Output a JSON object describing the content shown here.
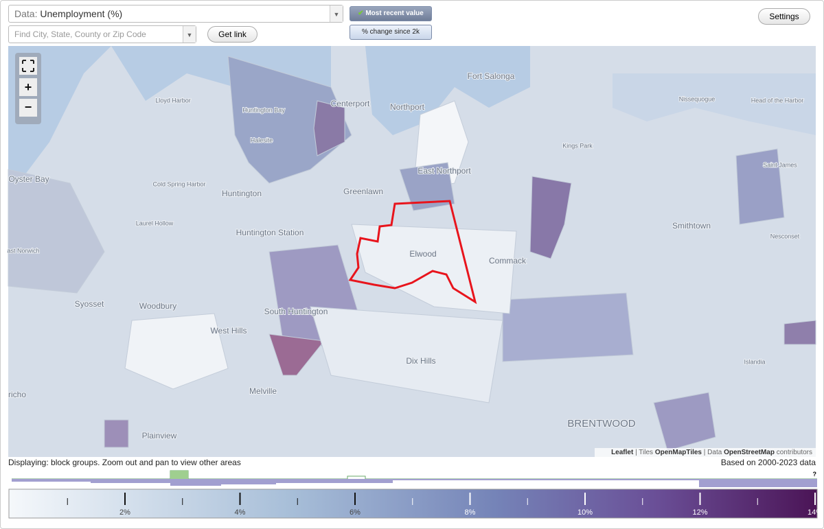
{
  "controls": {
    "data_prefix": "Data:",
    "data_value": "Unemployment (%)",
    "search_placeholder": "Find City, State, County or Zip Code",
    "get_link": "Get link",
    "mode_recent": "Most recent value",
    "mode_change": "% change since 2k",
    "settings": "Settings",
    "zoom_in": "+",
    "zoom_out": "−"
  },
  "map": {
    "places": [
      "Fort Salonga",
      "Lloyd Harbor",
      "Huntington Bay",
      "Centerport",
      "Northport",
      "Nissequogue",
      "Head of the Harbor",
      "Halesite",
      "Kings Park",
      "East Northport",
      "Saint James",
      "Oyster Bay",
      "Cold Spring Harbor",
      "Huntington",
      "Greenlawn",
      "Laurel Hollow",
      "Smithtown",
      "Huntington Station",
      "ast Norwich",
      "Elwood",
      "Commack",
      "Nesconset",
      "Syosset",
      "Woodbury",
      "South Huntington",
      "West Hills",
      "Dix Hills",
      "Islandia",
      "Melville",
      "richo",
      "Plainview",
      "BRENTWOOD"
    ],
    "attribution": {
      "leaflet": "Leaflet",
      "tiles": "Tiles",
      "tiles_source": "OpenMapTiles",
      "data": "Data",
      "data_source": "OpenStreetMap",
      "contributors": "contributors"
    }
  },
  "footer": {
    "displaying": "Displaying: block groups. Zoom out and pan to view other areas",
    "based_on": "Based on 2000-2023 data",
    "help": "?"
  },
  "legend": {
    "ticks": [
      {
        "value": 2,
        "label": "2%"
      },
      {
        "value": 4,
        "label": "4%"
      },
      {
        "value": 6,
        "label": "6%"
      },
      {
        "value": 8,
        "label": "8%"
      },
      {
        "value": 10,
        "label": "10%"
      },
      {
        "value": 12,
        "label": "12%"
      },
      {
        "value": 14,
        "label": "14%"
      }
    ],
    "minor_ticks": [
      1,
      3,
      5,
      7,
      9,
      11,
      13
    ]
  }
}
